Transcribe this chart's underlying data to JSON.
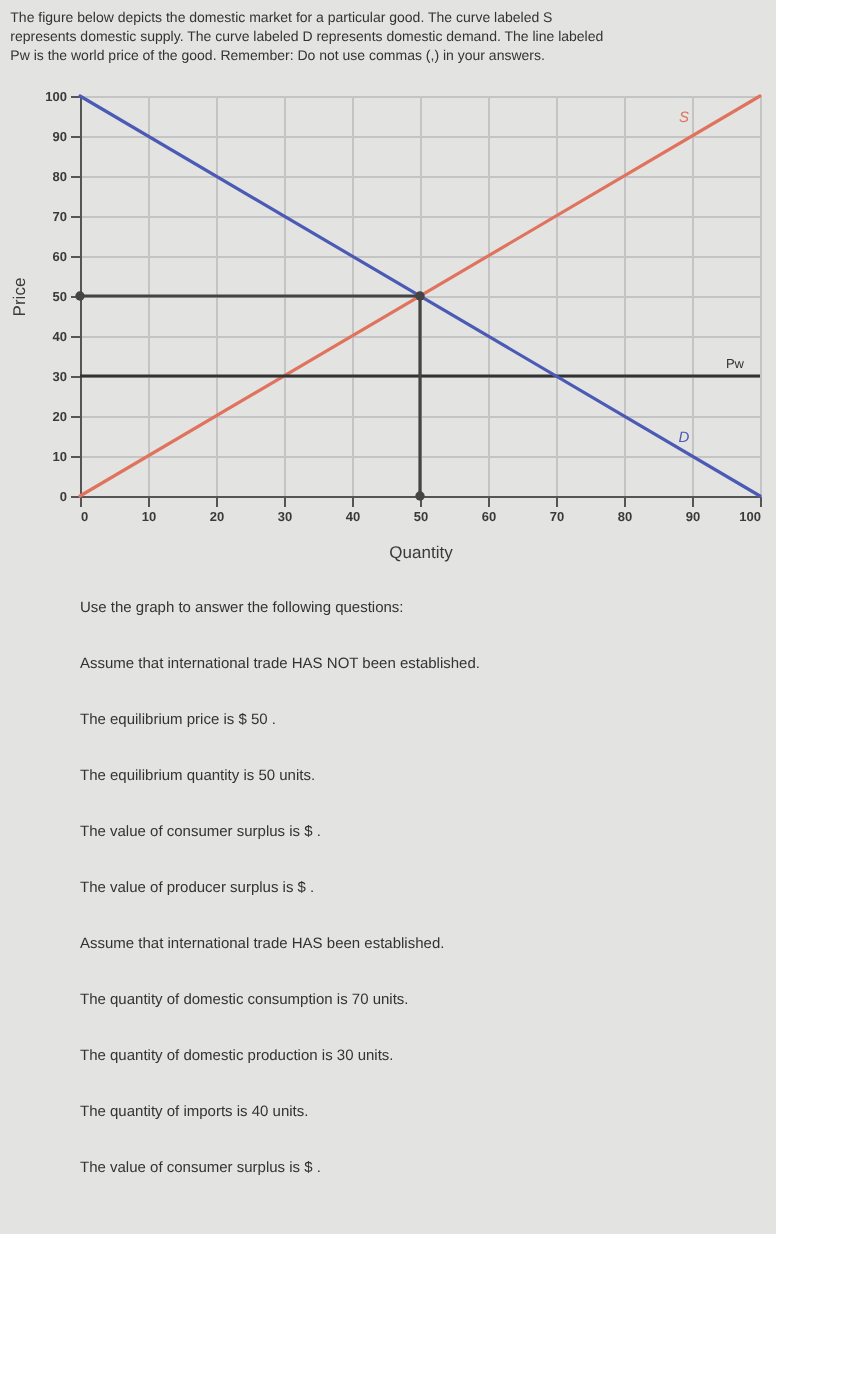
{
  "chart_data": {
    "type": "line",
    "title": "The figure below depicts the domestic market for a particular good. The curve labeled S represents domestic supply. The curve labeled D represents domestic demand. The line labeled Pw is the world price of the good. Remember: Do not use commas (,) in your answers.",
    "xlabel": "Quantity",
    "ylabel": "Price",
    "xlim": [
      0,
      100
    ],
    "ylim": [
      0,
      100
    ],
    "xticks": [
      0,
      10,
      20,
      30,
      40,
      50,
      60,
      70,
      80,
      90,
      100
    ],
    "yticks": [
      0,
      10,
      20,
      30,
      40,
      50,
      60,
      70,
      80,
      90,
      100
    ],
    "grid": true,
    "series": [
      {
        "name": "S",
        "color": "#e0735d",
        "x": [
          0,
          100
        ],
        "values": [
          0,
          100
        ]
      },
      {
        "name": "D",
        "color": "#4b5bb5",
        "x": [
          0,
          100
        ],
        "values": [
          100,
          0
        ]
      },
      {
        "color": "#444444",
        "x": [
          0,
          50,
          50
        ],
        "values": [
          50,
          50,
          0
        ],
        "marker": "circle"
      }
    ],
    "ref_lines": [
      {
        "axis": "y",
        "value": 30,
        "label": "Pw",
        "color": "#333333"
      }
    ],
    "annotations": [
      "Use the graph to answer the following questions:",
      "Assume that international trade HAS NOT been established.",
      "The equilibrium price is $ 50 .",
      "The equilibrium quantity is 50 units.",
      "The value of consumer surplus is $ .",
      "The value of producer surplus is $ .",
      "Assume that international trade HAS been established.",
      "The quantity of domestic consumption is 70 units.",
      "The quantity of domestic production is 30 units.",
      "The quantity of imports is 40 units.",
      "The value of consumer surplus is $ ."
    ]
  }
}
